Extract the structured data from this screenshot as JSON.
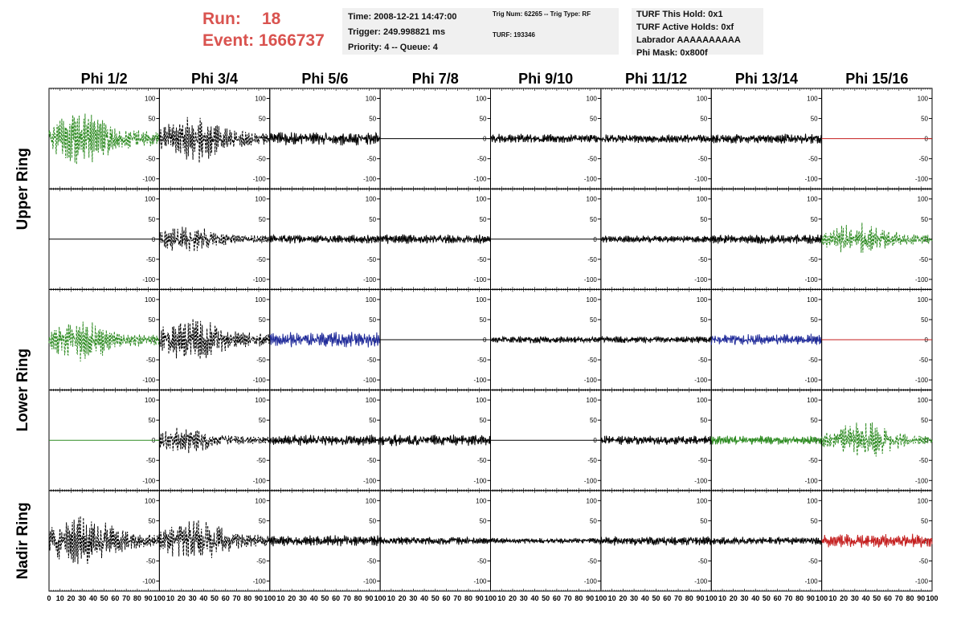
{
  "header": {
    "run_label": "Run:",
    "run_value": "18",
    "event_label": "Event:",
    "event_value": "1666737",
    "time": "Time: 2008-12-21 14:47:00",
    "trigger": "Trigger: 249.998821 ms",
    "priority": "Priority: 4 -- Queue: 4",
    "trig_info": "Trig Num: 62265 -- Trig Type: RF",
    "turf": "TURF: 193346",
    "turf_hold": "TURF This Hold: 0x1",
    "turf_active": "TURF Active Holds: 0xf",
    "labrador": "Labrador AAAAAAAAAA",
    "phi_mask": "Phi Mask: 0x800f"
  },
  "chart_data": {
    "type": "line",
    "columns": [
      "Phi 1/2",
      "Phi 3/4",
      "Phi 5/6",
      "Phi 7/8",
      "Phi 9/10",
      "Phi 11/12",
      "Phi 13/14",
      "Phi 15/16"
    ],
    "rows": [
      "Upper Ring",
      "Upper Ring",
      "Lower Ring",
      "Lower Ring",
      "Nadir Ring"
    ],
    "row_labels": [
      {
        "label": "Upper Ring"
      },
      {
        "label": "Lower Ring"
      },
      {
        "label": "Nadir Ring"
      }
    ],
    "xlim": [
      0,
      100
    ],
    "ylim": [
      -125,
      125
    ],
    "x_ticks": [
      "0",
      "10",
      "20",
      "30",
      "40",
      "50",
      "60",
      "70",
      "80",
      "90",
      "100"
    ],
    "y_ticks": [
      "100",
      "50",
      "0",
      "-50",
      "-100"
    ],
    "colors": {
      "black": "#000000",
      "green": "#2e8b22",
      "blue": "#1f2a99",
      "red": "#c41e1e"
    },
    "panels": [
      [
        {
          "color": "green",
          "style": "dash",
          "amp": 55,
          "env": "burst",
          "center": 30,
          "seed": 1
        },
        {
          "color": "black",
          "style": "dash",
          "amp": 50,
          "env": "burst",
          "center": 32,
          "seed": 2
        },
        {
          "color": "black",
          "style": "solid",
          "amp": 18,
          "env": "flat",
          "seed": 3
        },
        {
          "color": "black",
          "style": "solid",
          "amp": 0,
          "env": "flat",
          "seed": 4
        },
        {
          "color": "black",
          "style": "solid",
          "amp": 12,
          "env": "flat",
          "seed": 5
        },
        {
          "color": "black",
          "style": "solid",
          "amp": 11,
          "env": "flat",
          "seed": 6
        },
        {
          "color": "black",
          "style": "solid",
          "amp": 13,
          "env": "flat",
          "seed": 7
        },
        {
          "color": "red",
          "style": "solid",
          "amp": 0,
          "env": "flat",
          "seed": 8
        }
      ],
      [
        {
          "color": "black",
          "style": "solid",
          "amp": 0,
          "env": "flat",
          "seed": 9
        },
        {
          "color": "black",
          "style": "dash",
          "amp": 28,
          "env": "burst",
          "center": 25,
          "seed": 10
        },
        {
          "color": "black",
          "style": "solid",
          "amp": 11,
          "env": "flat",
          "seed": 11
        },
        {
          "color": "black",
          "style": "solid",
          "amp": 12,
          "env": "flat",
          "seed": 12
        },
        {
          "color": "black",
          "style": "solid",
          "amp": 0,
          "env": "flat",
          "seed": 13
        },
        {
          "color": "black",
          "style": "solid",
          "amp": 9,
          "env": "flat",
          "seed": 14
        },
        {
          "color": "black",
          "style": "solid",
          "amp": 12,
          "env": "flat",
          "seed": 15
        },
        {
          "color": "green",
          "style": "dash",
          "amp": 35,
          "env": "burst",
          "center": 35,
          "seed": 16
        }
      ],
      [
        {
          "color": "green",
          "style": "dash",
          "amp": 45,
          "env": "burst",
          "center": 30,
          "seed": 17
        },
        {
          "color": "black",
          "style": "dash",
          "amp": 48,
          "env": "burst",
          "center": 30,
          "seed": 18
        },
        {
          "color": "blue",
          "style": "solid",
          "amp": 20,
          "env": "flat",
          "seed": 19
        },
        {
          "color": "black",
          "style": "solid",
          "amp": 0,
          "env": "flat",
          "seed": 20
        },
        {
          "color": "black",
          "style": "solid",
          "amp": 9,
          "env": "flat",
          "seed": 21
        },
        {
          "color": "black",
          "style": "solid",
          "amp": 9,
          "env": "flat",
          "seed": 22
        },
        {
          "color": "blue",
          "style": "solid",
          "amp": 15,
          "env": "flat",
          "seed": 23
        },
        {
          "color": "red",
          "style": "solid",
          "amp": 0,
          "env": "flat",
          "seed": 24
        }
      ],
      [
        {
          "color": "green",
          "style": "solid",
          "amp": 0,
          "env": "flat",
          "seed": 25
        },
        {
          "color": "black",
          "style": "dash",
          "amp": 28,
          "env": "burst",
          "center": 25,
          "seed": 26
        },
        {
          "color": "black",
          "style": "solid",
          "amp": 14,
          "env": "flat",
          "seed": 27
        },
        {
          "color": "black",
          "style": "solid",
          "amp": 15,
          "env": "flat",
          "seed": 28
        },
        {
          "color": "black",
          "style": "solid",
          "amp": 0,
          "env": "flat",
          "seed": 29
        },
        {
          "color": "black",
          "style": "solid",
          "amp": 12,
          "env": "flat",
          "seed": 30
        },
        {
          "color": "green",
          "style": "solid",
          "amp": 12,
          "env": "flat",
          "seed": 31
        },
        {
          "color": "green",
          "style": "dash",
          "amp": 38,
          "env": "burst",
          "center": 38,
          "seed": 32
        }
      ],
      [
        {
          "color": "black",
          "style": "dash",
          "amp": 55,
          "env": "burst",
          "center": 30,
          "seed": 33
        },
        {
          "color": "black",
          "style": "dash",
          "amp": 45,
          "env": "burst",
          "center": 32,
          "seed": 34
        },
        {
          "color": "black",
          "style": "solid",
          "amp": 14,
          "env": "flat",
          "seed": 35
        },
        {
          "color": "black",
          "style": "solid",
          "amp": 10,
          "env": "flat",
          "seed": 36
        },
        {
          "color": "black",
          "style": "solid",
          "amp": 7,
          "env": "flat",
          "seed": 37
        },
        {
          "color": "black",
          "style": "solid",
          "amp": 12,
          "env": "flat",
          "seed": 38
        },
        {
          "color": "black",
          "style": "solid",
          "amp": 10,
          "env": "flat",
          "seed": 39
        },
        {
          "color": "red",
          "style": "solid",
          "amp": 18,
          "env": "flat",
          "seed": 40
        }
      ]
    ]
  }
}
